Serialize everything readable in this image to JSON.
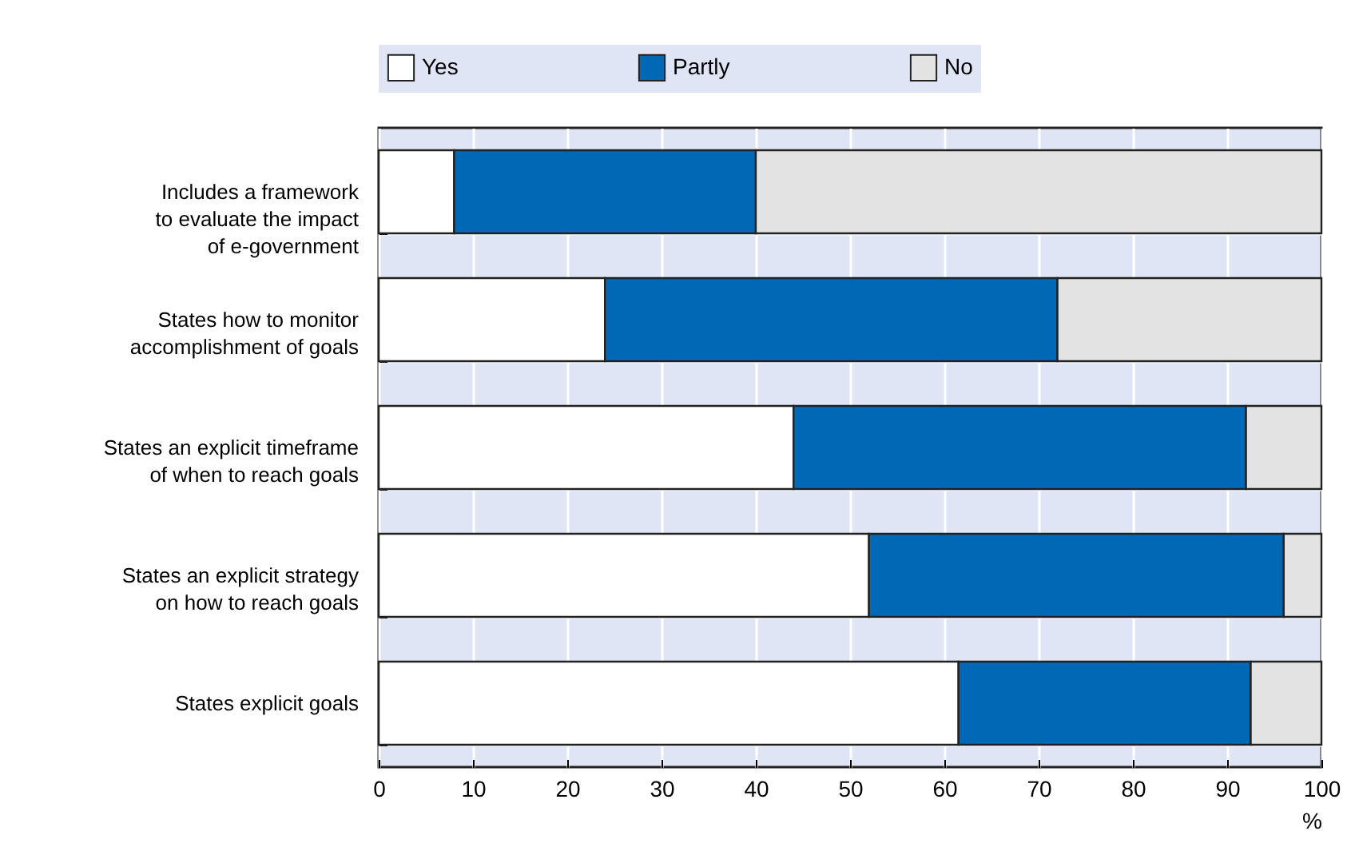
{
  "chart_data": {
    "type": "bar",
    "orientation": "horizontal",
    "stacked": true,
    "xlabel": "%",
    "legend": "top",
    "grid": true,
    "categories": [
      "Includes a framework to evaluate the impact of e-government",
      "States how to monitor accomplishment of goals",
      "States an explicit timeframe of when to reach goals",
      "States an explicit strategy on how to reach goals",
      "States explicit goals"
    ],
    "series": [
      {
        "name": "Yes",
        "color": "#ffffff",
        "values": [
          8,
          24,
          44,
          52,
          61.5
        ]
      },
      {
        "name": "Partly",
        "color": "#0068b5",
        "values": [
          32,
          48,
          48,
          44,
          31
        ]
      },
      {
        "name": "No",
        "color": "#e3e3e3",
        "values": [
          60,
          28,
          8,
          4,
          7.5
        ]
      }
    ],
    "xlim": [
      0,
      100
    ],
    "xticks": [
      0,
      10,
      20,
      30,
      40,
      50,
      60,
      70,
      80,
      90,
      100
    ]
  }
}
